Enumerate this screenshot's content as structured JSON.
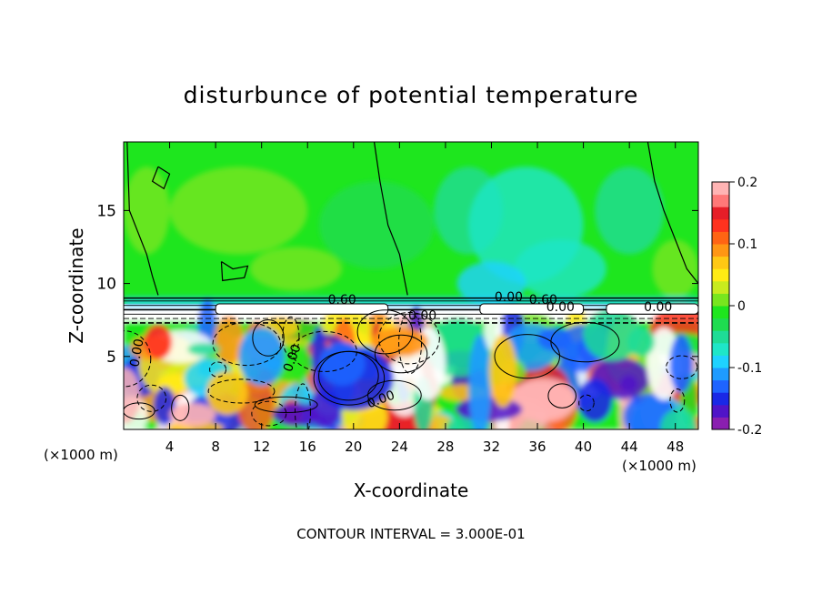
{
  "chart_data": {
    "type": "heatmap",
    "title": "disturbunce of potential temperature",
    "xlabel": "X-coordinate",
    "ylabel": "Z-coordinate",
    "x_unit": "(×1000 m)",
    "y_unit": "(×1000 m)",
    "xlim": [
      0,
      50
    ],
    "ylim": [
      0,
      19.7
    ],
    "x_ticks": [
      "4",
      "8",
      "12",
      "16",
      "20",
      "24",
      "28",
      "32",
      "36",
      "40",
      "44",
      "48"
    ],
    "x_tick_values": [
      4,
      8,
      12,
      16,
      20,
      24,
      28,
      32,
      36,
      40,
      44,
      48
    ],
    "y_ticks": [
      "5",
      "10",
      "15"
    ],
    "y_tick_values": [
      5,
      10,
      15
    ],
    "colorbar": {
      "range": [
        -0.2,
        0.2
      ],
      "tick_labels": [
        "0.2",
        "0.1",
        "0",
        "-0.1",
        "-0.2"
      ],
      "tick_values": [
        0.2,
        0.1,
        0,
        -0.1,
        -0.2
      ],
      "colors": [
        "#8a1fb0",
        "#5014c8",
        "#1a28e6",
        "#1e64ff",
        "#1e9bff",
        "#1ed2ff",
        "#1ee6c8",
        "#1edc96",
        "#1edc50",
        "#1ee61e",
        "#78e61e",
        "#c8eb1e",
        "#ffeb14",
        "#ffc814",
        "#ff9614",
        "#ff6414",
        "#ff321e",
        "#e61e28",
        "#ff7878",
        "#ffb4b4"
      ]
    },
    "contour_labels": [
      "0.60",
      "0.00",
      "0.00",
      "0.00",
      "0.00",
      "0.60",
      "0.00",
      "0.00",
      "0.00"
    ],
    "contour_interval_text": "CONTOUR INTERVAL = 3.000E-01",
    "regions": {
      "upper_background_value": 0.0,
      "tropopause_height": 8.5,
      "lower_layer_top": 7.5
    }
  }
}
